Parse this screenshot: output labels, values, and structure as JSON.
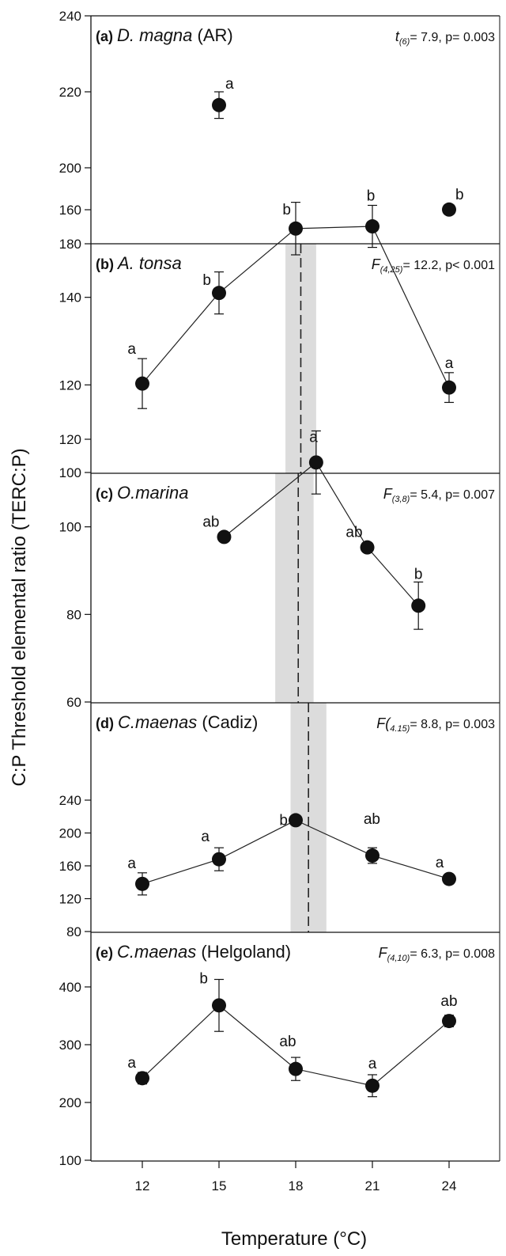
{
  "chart_data": [
    {
      "type": "scatter",
      "panel": "(a)",
      "species": "D. magna",
      "species_suffix": " (AR)",
      "stat": {
        "prefix": "t",
        "sub": "(6)",
        "rest": "= 7.9, p= 0.003"
      },
      "ylim": [
        180,
        240
      ],
      "yticks": [
        180,
        200,
        220,
        240
      ],
      "xlim": [
        9.5,
        27.5
      ],
      "connect": false,
      "points": [
        {
          "x": 15,
          "y": 216.5,
          "err": 3.5,
          "label": "a"
        },
        {
          "x": 24,
          "y": 189,
          "err": 1,
          "label": "b"
        }
      ]
    },
    {
      "type": "line",
      "panel": "(b)",
      "species": "A. tonsa",
      "species_suffix": "",
      "stat": {
        "prefix": "F",
        "sub": "(4,25)",
        "rest": "= 12.2, p< 0.001"
      },
      "ylim": [
        100,
        180
      ],
      "yticks": [
        100,
        120,
        140,
        160
      ],
      "connect": true,
      "optimum": {
        "x": 18.2,
        "band": [
          17.6,
          18.8
        ]
      },
      "points": [
        {
          "x": 12,
          "y": 120.3,
          "err": 5.7,
          "label": "a"
        },
        {
          "x": 15,
          "y": 141,
          "err": 4.8,
          "label": "b"
        },
        {
          "x": 18,
          "y": 155.7,
          "err": 6,
          "label": "b"
        },
        {
          "x": 21,
          "y": 156.2,
          "err": 4.8,
          "label": "b"
        },
        {
          "x": 24,
          "y": 119.4,
          "err": 3.4,
          "label": "a"
        }
      ]
    },
    {
      "type": "line",
      "panel": "(c)",
      "species": "O.marina",
      "species_suffix": "",
      "stat": {
        "prefix": "F",
        "sub": "(3,8)",
        "rest": "= 5.4, p= 0.007"
      },
      "ylim": [
        60,
        140
      ],
      "yticks": [
        60,
        80,
        100,
        120
      ],
      "connect": true,
      "optimum": {
        "x": 18.1,
        "band": [
          17.2,
          18.7
        ]
      },
      "points": [
        {
          "x": 15.2,
          "y": 97.7,
          "err": 1,
          "label": "ab"
        },
        {
          "x": 18.8,
          "y": 114.7,
          "err": 7.2,
          "label": "a"
        },
        {
          "x": 20.8,
          "y": 95.3,
          "err": 1,
          "label": "ab"
        },
        {
          "x": 22.8,
          "y": 82,
          "err": 5.4,
          "label": "b"
        }
      ]
    },
    {
      "type": "line",
      "panel": "(d)",
      "species": "C.maenas",
      "species_suffix": " (Cadiz)",
      "stat": {
        "prefix": "F(",
        "sub": "4.15)",
        "rest": "= 8.8, p= 0.003"
      },
      "ylim": [
        80,
        250
      ],
      "yticks": [
        80,
        120,
        160,
        200,
        240
      ],
      "connect": true,
      "optimum": {
        "x": 18.5,
        "band": [
          17.8,
          19.2
        ]
      },
      "points": [
        {
          "x": 12,
          "y": 138,
          "err": 13.5,
          "label": "a"
        },
        {
          "x": 15,
          "y": 168,
          "err": 14,
          "label": "a"
        },
        {
          "x": 18,
          "y": 215.5,
          "err": 5.5,
          "label": "b"
        },
        {
          "x": 21,
          "y": 172.5,
          "err": 9.5,
          "label": "ab"
        },
        {
          "x": 24,
          "y": 144,
          "err": 4.5,
          "label": "a"
        }
      ]
    },
    {
      "type": "line",
      "panel": "(e)",
      "species": "C.maenas",
      "species_suffix": " (Helgoland)",
      "stat": {
        "prefix": "F",
        "sub": "(4,10)",
        "rest": "= 6.3, p= 0.008"
      },
      "ylim": [
        100,
        500
      ],
      "yticks": [
        100,
        200,
        300,
        400
      ],
      "connect": true,
      "points": [
        {
          "x": 12,
          "y": 242,
          "err": 10,
          "label": "a"
        },
        {
          "x": 15,
          "y": 368,
          "err": 45,
          "label": "b"
        },
        {
          "x": 18,
          "y": 258,
          "err": 20,
          "label": "ab"
        },
        {
          "x": 21,
          "y": 229,
          "err": 19,
          "label": "a"
        },
        {
          "x": 24,
          "y": 341,
          "err": 10,
          "label": "ab"
        }
      ]
    }
  ],
  "xticks": [
    12,
    15,
    18,
    21,
    24
  ],
  "xlabel": "Temperature (°C)",
  "ylabel": "C:P Threshold elemental ratio (TERC:P)",
  "colors": {
    "marker": "#111111",
    "band": "#dcdcdc",
    "line": "#222222"
  }
}
